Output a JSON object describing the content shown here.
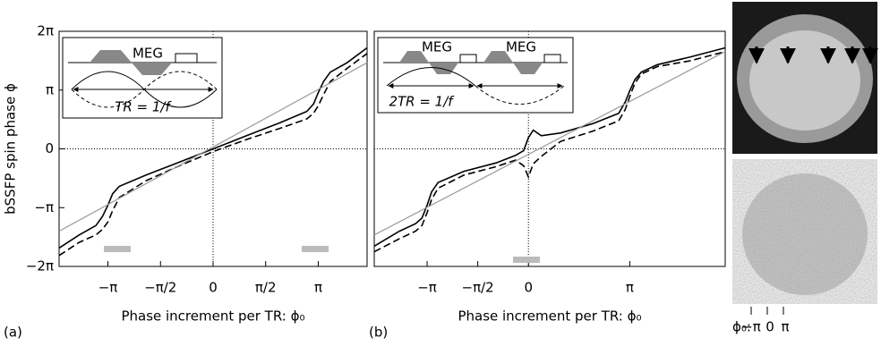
{
  "chart_data": [
    {
      "type": "line",
      "panel_label": "(a)",
      "ylabel": "bSSFP spin phase ϕ",
      "xlabel": "Phase increment per TR: ϕ₀",
      "annotations": [
        "MEG",
        "TR = 1/f"
      ],
      "xlim": [
        -4.6,
        4.6
      ],
      "ylim": [
        -6.2832,
        6.2832
      ],
      "xticks": [
        {
          "value": -3.1416,
          "label": "−π"
        },
        {
          "value": -1.5708,
          "label": "−π/2"
        },
        0,
        {
          "value": 1.5708,
          "label": "π/2"
        },
        {
          "value": 3.1416,
          "label": "π"
        }
      ],
      "yticks": [
        {
          "value": 6.2832,
          "label": "2π"
        },
        {
          "value": 3.1416,
          "label": "π"
        },
        0,
        {
          "value": -3.1416,
          "label": "−π"
        },
        {
          "value": -6.2832,
          "label": "−2π"
        }
      ],
      "x": [
        -4.6,
        -4.0,
        -3.5,
        -3.3,
        -3.14,
        -3.0,
        -2.8,
        -2.0,
        -1.0,
        0,
        1.0,
        2.0,
        2.8,
        3.0,
        3.14,
        3.3,
        3.5,
        4.0,
        4.6
      ],
      "series": [
        {
          "color": "#000000",
          "dash": false,
          "values": [
            -5.3,
            -4.6,
            -4.1,
            -3.6,
            -3.0,
            -2.4,
            -2.0,
            -1.4,
            -0.7,
            0,
            0.7,
            1.4,
            2.0,
            2.4,
            3.0,
            3.6,
            4.1,
            4.6,
            5.4
          ]
        },
        {
          "color": "#000000",
          "dash": true,
          "values": [
            -5.7,
            -5.0,
            -4.6,
            -4.3,
            -3.9,
            -3.3,
            -2.6,
            -1.7,
            -0.9,
            -0.15,
            0.5,
            1.1,
            1.6,
            1.9,
            2.3,
            2.9,
            3.6,
            4.3,
            5.1
          ]
        },
        {
          "color": "#999999",
          "dash": false,
          "x": [
            -4.6,
            4.6
          ],
          "values": [
            -4.4,
            4.6
          ]
        }
      ]
    },
    {
      "type": "line",
      "panel_label": "(b)",
      "xlabel": "Phase increment per TR: ϕ₀",
      "annotations": [
        "MEG",
        "MEG",
        "2TR = 1/f"
      ],
      "xlim": [
        -4.78,
        6.1
      ],
      "ylim": [
        -6.2832,
        6.2832
      ],
      "xticks": [
        {
          "value": -3.1416,
          "label": "−π"
        },
        {
          "value": -1.5708,
          "label": "−π/2"
        },
        0,
        {
          "value": 3.1416,
          "label": "π"
        }
      ],
      "x": [
        -4.78,
        -4.0,
        -3.5,
        -3.3,
        -3.14,
        -3.0,
        -2.8,
        -2.0,
        -1.0,
        -0.4,
        -0.15,
        0,
        0.15,
        0.4,
        1.0,
        2.0,
        2.8,
        3.0,
        3.14,
        3.3,
        3.5,
        4.0,
        5.0,
        6.1
      ],
      "series": [
        {
          "color": "#000000",
          "dash": false,
          "values": [
            -5.2,
            -4.4,
            -4.0,
            -3.7,
            -3.0,
            -2.3,
            -1.8,
            -1.2,
            -0.75,
            -0.35,
            -0.1,
            0.6,
            1.0,
            0.7,
            0.85,
            1.35,
            1.9,
            2.5,
            3.1,
            3.7,
            4.1,
            4.5,
            4.9,
            5.4
          ]
        },
        {
          "color": "#000000",
          "dash": true,
          "values": [
            -5.5,
            -4.8,
            -4.4,
            -4.1,
            -3.4,
            -2.7,
            -2.1,
            -1.4,
            -0.95,
            -0.6,
            -0.9,
            -1.5,
            -0.8,
            -0.4,
            0.4,
            0.95,
            1.5,
            2.1,
            2.8,
            3.5,
            4.0,
            4.4,
            4.7,
            5.2
          ]
        },
        {
          "color": "#999999",
          "dash": false,
          "x": [
            -4.78,
            6.1
          ],
          "values": [
            -4.6,
            5.2
          ]
        }
      ]
    }
  ],
  "image_panel": {
    "labels": [
      "ϕ₀:",
      "−π",
      "0",
      "π"
    ]
  }
}
